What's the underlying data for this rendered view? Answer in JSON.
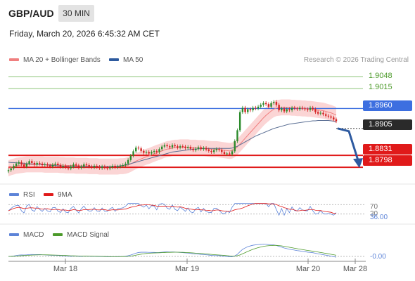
{
  "header": {
    "symbol": "GBP/AUD",
    "timeframe": "30 MIN",
    "datetime": "Friday, March 20, 2026 6:45:32 AM CET"
  },
  "legend": {
    "ma20": {
      "label": "MA 20 + Bollinger Bands",
      "color": "#f07f7f"
    },
    "ma50": {
      "label": "MA 50",
      "color": "#2d5a9e"
    },
    "credit": "Research © 2026 Trading Central"
  },
  "levels": [
    {
      "value": "1.9048",
      "style": "plain"
    },
    {
      "value": "1.9015",
      "style": "plain"
    },
    {
      "value": "1.8960",
      "style": "blue"
    },
    {
      "value": "1.8905",
      "style": "dark"
    },
    {
      "value": "1.8831",
      "style": "red"
    },
    {
      "value": "1.8798",
      "style": "red"
    }
  ],
  "rsi": {
    "label": "RSI",
    "ma_label": "9MA",
    "level_70": "70",
    "level_30": "30",
    "value": "36.00"
  },
  "macd": {
    "label": "MACD",
    "signal_label": "MACD Signal",
    "value": "-0.00"
  },
  "x_axis": [
    "Mar 18",
    "Mar 19",
    "Mar 20",
    "Mar 28"
  ],
  "colors": {
    "up": "#2b8a2b",
    "down": "#d42020",
    "band": "#f9c7c7",
    "ma50": "#5b6f94",
    "blue_line": "#3d6fe0",
    "red_line": "#e01a1a",
    "green_line": "#8dc47a",
    "rsi": "#5d84d8",
    "rsi_ma": "#e01a1a",
    "macd": "#5d84d8",
    "signal": "#4c9a2a",
    "arrow": "#2d5aa0"
  },
  "chart_data": {
    "type": "candlestick",
    "title": "GBP/AUD",
    "timeframe": "30 MIN",
    "ylim": [
      1.8775,
      1.9075
    ],
    "x_labels": [
      "Mar 18",
      "Mar 19",
      "Mar 20",
      "Mar 28"
    ],
    "closes": [
      1.879,
      1.8795,
      1.8802,
      1.8808,
      1.8812,
      1.8806,
      1.88,
      1.8808,
      1.8815,
      1.881,
      1.8805,
      1.881,
      1.8808,
      1.8804,
      1.8806,
      1.8803,
      1.88,
      1.8805,
      1.8808,
      1.8804,
      1.8799,
      1.8802,
      1.8798,
      1.8795,
      1.88,
      1.8806,
      1.8803,
      1.8797,
      1.88,
      1.8806,
      1.8804,
      1.88,
      1.8798,
      1.8802,
      1.8799,
      1.8796,
      1.88,
      1.8797,
      1.8795,
      1.8798,
      1.8802,
      1.8798,
      1.88,
      1.8802,
      1.8804,
      1.8808,
      1.8818,
      1.883,
      1.8842,
      1.8852,
      1.885,
      1.8843,
      1.8838,
      1.884,
      1.8836,
      1.884,
      1.8843,
      1.884,
      1.8848,
      1.8855,
      1.8859,
      1.8856,
      1.8853,
      1.8859,
      1.8856,
      1.8852,
      1.8856,
      1.8855,
      1.8851,
      1.8854,
      1.8849,
      1.8845,
      1.8849,
      1.8853,
      1.8848,
      1.8851,
      1.8847,
      1.8843,
      1.884,
      1.8845,
      1.8848,
      1.8846,
      1.884,
      1.8835,
      1.8836,
      1.8834,
      1.8842,
      1.887,
      1.89,
      1.895,
      1.8962,
      1.895,
      1.8958,
      1.8955,
      1.8962,
      1.896,
      1.8965,
      1.897,
      1.8975,
      1.8972,
      1.8965,
      1.8975,
      1.8978,
      1.897,
      1.8955,
      1.896,
      1.8952,
      1.8958,
      1.8955,
      1.8962,
      1.896,
      1.8958,
      1.8962,
      1.896,
      1.8958,
      1.8956,
      1.8962,
      1.8958,
      1.895,
      1.8946,
      1.8948,
      1.8944,
      1.894,
      1.8938,
      1.8935,
      1.893,
      1.8925
    ],
    "ma20": [
      1.8795,
      1.8798,
      1.88,
      1.8802,
      1.8803,
      1.8804,
      1.8805,
      1.8806,
      1.8806,
      1.8806,
      1.8806,
      1.8806,
      1.8806,
      1.8806,
      1.8805,
      1.8805,
      1.8805,
      1.8805,
      1.8805,
      1.8805,
      1.8804,
      1.8804,
      1.8803,
      1.8803,
      1.8803,
      1.8803,
      1.8802,
      1.8802,
      1.8802,
      1.8802,
      1.8802,
      1.8801,
      1.8801,
      1.8801,
      1.8801,
      1.88,
      1.88,
      1.88,
      1.88,
      1.88,
      1.88,
      1.88,
      1.88,
      1.8801,
      1.8801,
      1.8802,
      1.8804,
      1.8807,
      1.8811,
      1.8815,
      1.8818,
      1.8821,
      1.8824,
      1.8827,
      1.8829,
      1.8832,
      1.8835,
      1.8838,
      1.884,
      1.8843,
      1.8846,
      1.8848,
      1.8849,
      1.8851,
      1.8852,
      1.8852,
      1.8853,
      1.8853,
      1.8853,
      1.8853,
      1.8852,
      1.8852,
      1.8852,
      1.8851,
      1.8851,
      1.8851,
      1.885,
      1.8849,
      1.8848,
      1.8848,
      1.8848,
      1.8847,
      1.8846,
      1.8845,
      1.8844,
      1.8843,
      1.8844,
      1.8848,
      1.8854,
      1.8862,
      1.887,
      1.8878,
      1.8886,
      1.8894,
      1.8902,
      1.891,
      1.8918,
      1.8926,
      1.8934,
      1.8941,
      1.8947,
      1.8953,
      1.8958,
      1.8961,
      1.8962,
      1.8963,
      1.8963,
      1.8963,
      1.8963,
      1.8962,
      1.8962,
      1.8961,
      1.8961,
      1.896,
      1.896,
      1.8959,
      1.8959,
      1.8958,
      1.8957,
      1.8956,
      1.8955,
      1.8954,
      1.8952,
      1.895,
      1.8948,
      1.8945,
      1.8942
    ],
    "ma50": [
      1.8812,
      1.8811,
      1.8811,
      1.881,
      1.881,
      1.8809,
      1.8809,
      1.8808,
      1.8808,
      1.8807,
      1.8807,
      1.8806,
      1.8806,
      1.8805,
      1.8805,
      1.8804,
      1.8804,
      1.8803,
      1.8803,
      1.8802,
      1.8802,
      1.8801,
      1.8801,
      1.8801,
      1.88,
      1.88,
      1.88,
      1.88,
      1.88,
      1.88,
      1.88,
      1.88,
      1.88,
      1.88,
      1.88,
      1.88,
      1.88,
      1.88,
      1.88,
      1.88,
      1.88,
      1.8801,
      1.8801,
      1.8802,
      1.8803,
      1.8804,
      1.8806,
      1.8808,
      1.881,
      1.8812,
      1.8814,
      1.8816,
      1.8818,
      1.882,
      1.8822,
      1.8824,
      1.8826,
      1.8828,
      1.883,
      1.8832,
      1.8834,
      1.8836,
      1.8838,
      1.884,
      1.8841,
      1.8842,
      1.8843,
      1.8844,
      1.8845,
      1.8846,
      1.8847,
      1.8848,
      1.8848,
      1.8849,
      1.8849,
      1.885,
      1.885,
      1.885,
      1.885,
      1.885,
      1.885,
      1.885,
      1.885,
      1.885,
      1.885,
      1.885,
      1.8851,
      1.8853,
      1.8856,
      1.886,
      1.8864,
      1.8868,
      1.8872,
      1.8876,
      1.888,
      1.8884,
      1.8887,
      1.889,
      1.8893,
      1.8896,
      1.8899,
      1.8902,
      1.8905,
      1.8907,
      1.8909,
      1.8911,
      1.8913,
      1.8915,
      1.8917,
      1.8918,
      1.8919,
      1.892,
      1.8921,
      1.8922,
      1.8923,
      1.8924,
      1.8925,
      1.8926,
      1.8926,
      1.8927,
      1.8927,
      1.8927,
      1.8927,
      1.8927,
      1.8926,
      1.8925,
      1.8924
    ],
    "bands_width": 0.0022,
    "levels": [
      1.9048,
      1.9015,
      1.896,
      1.8905,
      1.8831,
      1.8798
    ],
    "current_price": 1.8905,
    "rsi": {
      "label": "RSI",
      "value": 36.0,
      "levels": [
        70,
        30
      ]
    },
    "macd": {
      "label": "MACD",
      "value": -0.0
    }
  }
}
